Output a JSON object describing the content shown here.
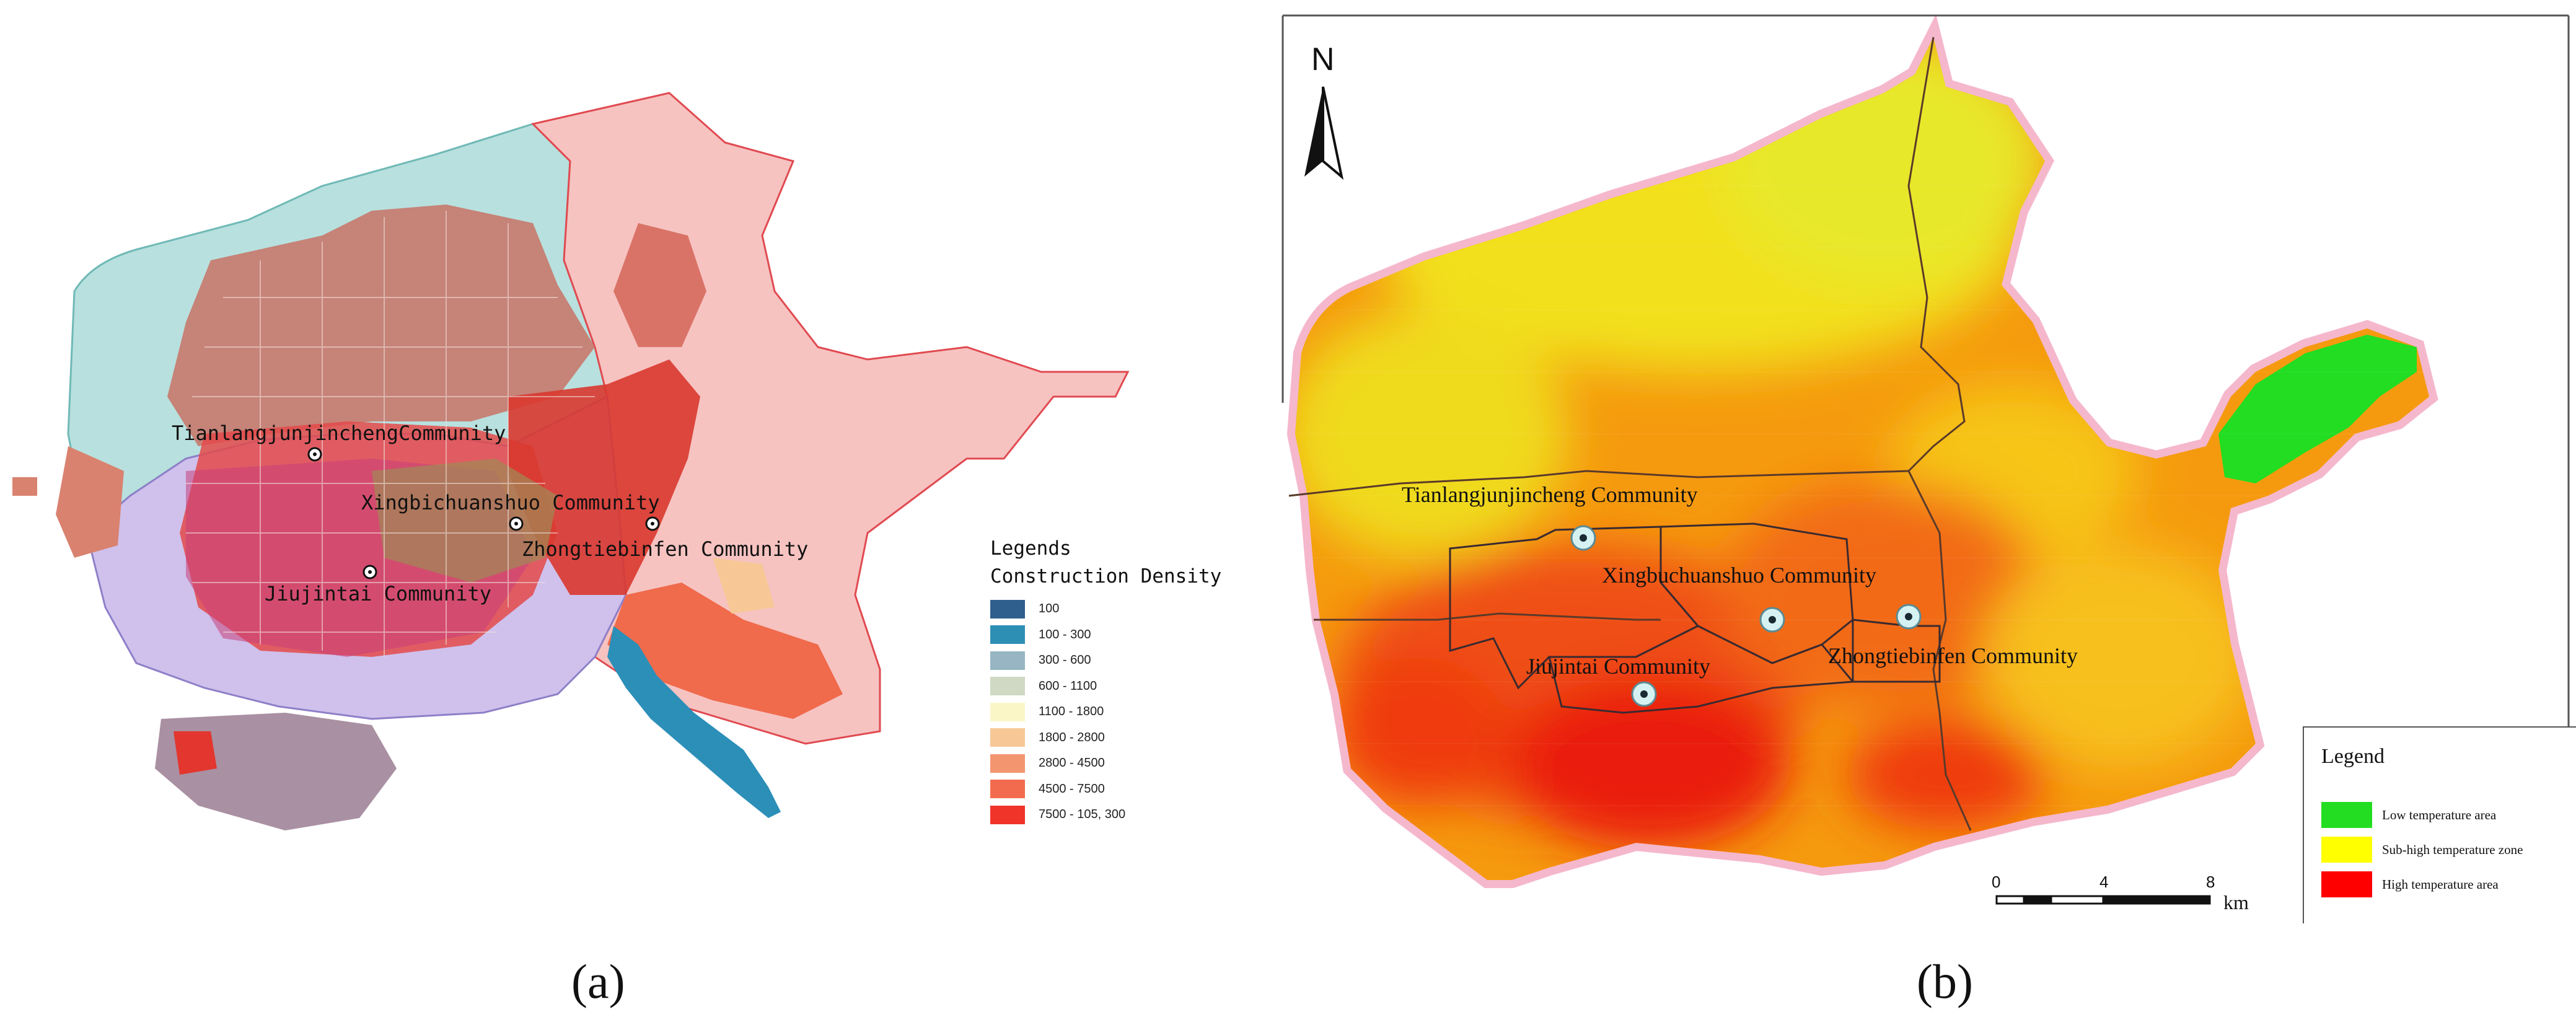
{
  "panel_a": {
    "caption": "(a)",
    "communities": [
      {
        "name": "TianlangjunjinchengCommunity"
      },
      {
        "name": "Xingbichuanshuo Community"
      },
      {
        "name": "Zhongtiebinfen Community"
      },
      {
        "name": "Jiujintai Community"
      }
    ],
    "legend": {
      "title": "Legends",
      "subtitle": "Construction Density",
      "items": [
        {
          "label": "100",
          "color": "#2f5f8c"
        },
        {
          "label": "100 - 300",
          "color": "#2e8fb5"
        },
        {
          "label": "300 - 600",
          "color": "#97b5c3"
        },
        {
          "label": "600 - 1100",
          "color": "#cfd9c3"
        },
        {
          "label": "1100 - 1800",
          "color": "#fbf6c6"
        },
        {
          "label": "1800 - 2800",
          "color": "#f7c896"
        },
        {
          "label": "2800 - 4500",
          "color": "#f3966f"
        },
        {
          "label": "4500 - 7500",
          "color": "#f36b4e"
        },
        {
          "label": "7500 - 105, 300",
          "color": "#f0342a"
        }
      ]
    },
    "colors": {
      "district_north": "#b8e0de",
      "district_east": "#f6c3c1",
      "district_southwest": "#cfc1ec",
      "river": "#2c8fb8"
    }
  },
  "panel_b": {
    "caption": "(b)",
    "north_arrow": "N",
    "communities": [
      {
        "name": "Tianlangjunjincheng  Community"
      },
      {
        "name": "Xingbuchuanshuo Community"
      },
      {
        "name": "Jiujintai Community"
      },
      {
        "name": "Zhongtiebinfen Community"
      }
    ],
    "legend": {
      "title": "Legend",
      "items": [
        {
          "label": "Low temperature area",
          "color": "#22dd22"
        },
        {
          "label": "Sub-high temperature zone",
          "color": "#ffff00"
        },
        {
          "label": "High temperature area",
          "color": "#ff0000"
        }
      ]
    },
    "scale_bar": {
      "ticks": [
        "0",
        "4",
        "8"
      ],
      "unit": "km"
    }
  }
}
